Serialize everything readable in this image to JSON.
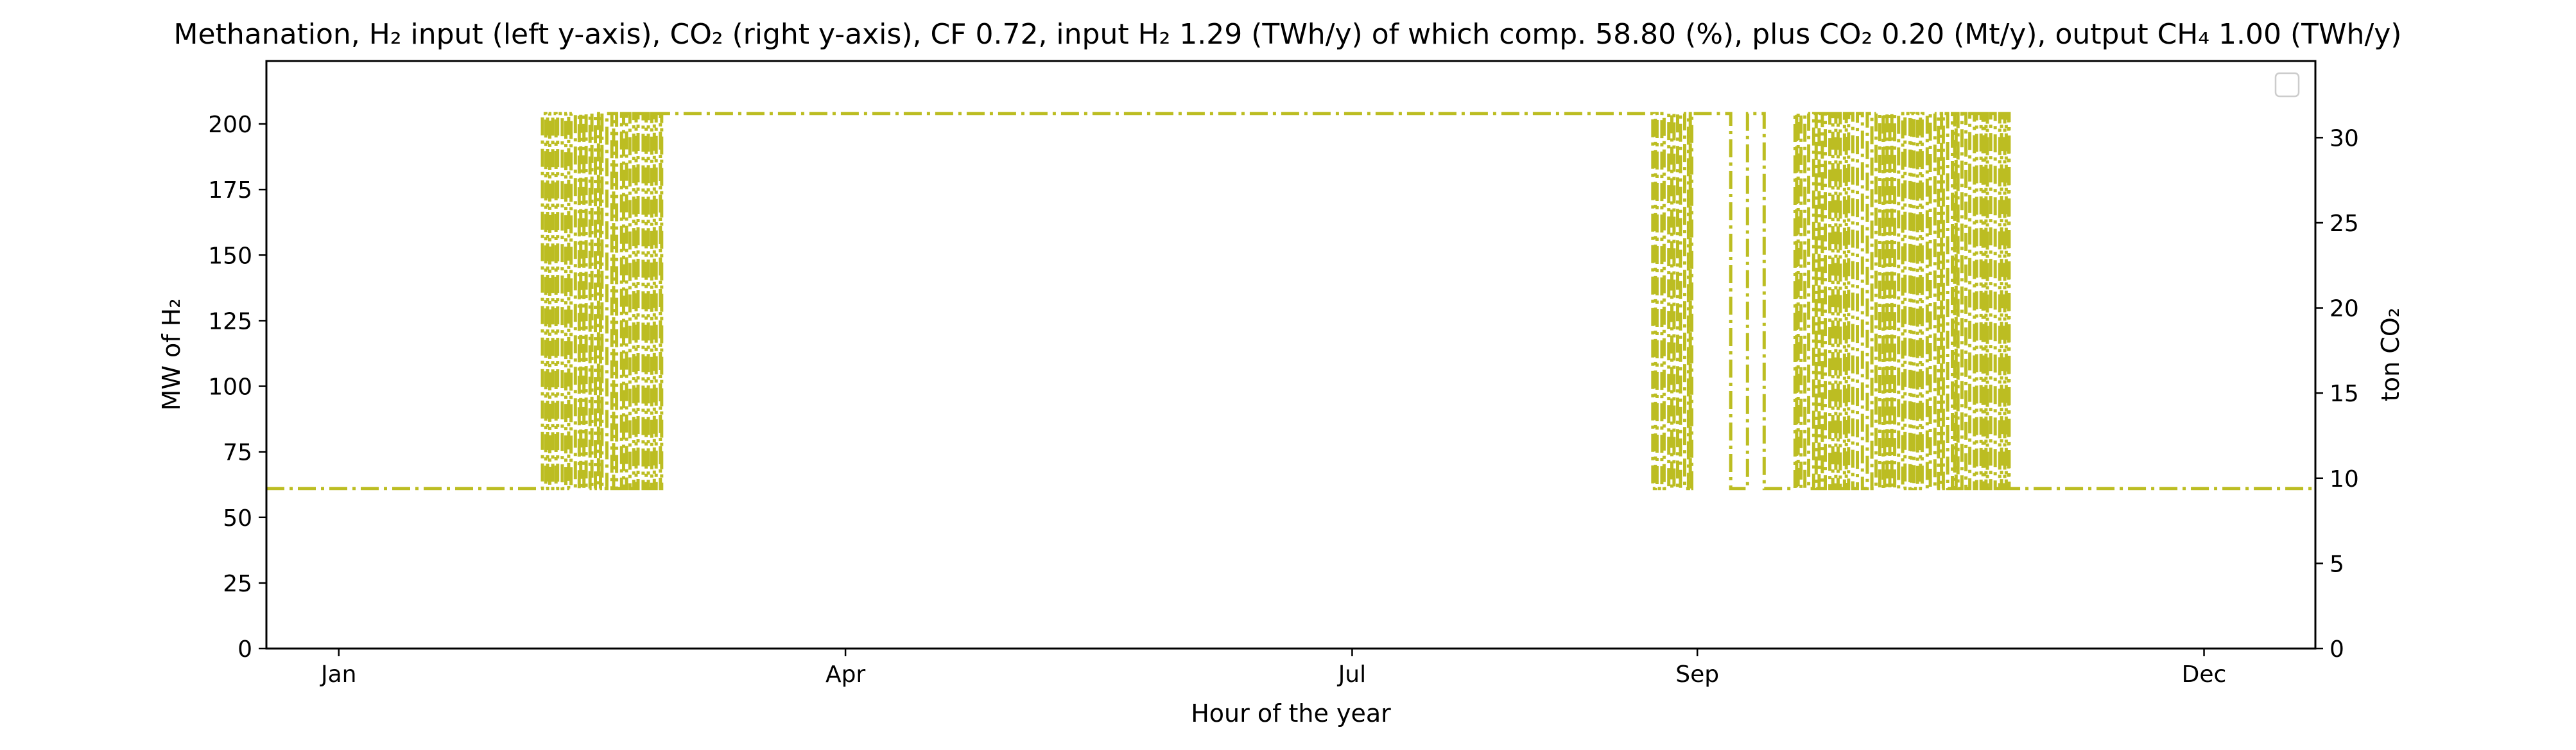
{
  "chart_data": {
    "type": "line",
    "title": "Methanation, H₂ input (left y-axis), CO₂ (right y-axis), CF 0.72, input H₂ 1.29 (TWh/y) of which comp. 58.80 (%), plus CO₂ 0.20 (Mt/y), output CH₄ 1.00 (TWh/y)",
    "xlabel": "Hour of the year",
    "ylabel_left": "MW of H₂",
    "ylabel_right": "ton CO₂",
    "x_axis_type": "date",
    "xlim": [
      "2023-12-19",
      "2024-12-21"
    ],
    "x_ticks": [
      {
        "date": "2024-01-01",
        "label": "Jan"
      },
      {
        "date": "2024-04-01",
        "label": "Apr"
      },
      {
        "date": "2024-07-01",
        "label": "Jul"
      },
      {
        "date": "2024-09-01",
        "label": "Sep"
      },
      {
        "date": "2024-12-01",
        "label": "Dec"
      }
    ],
    "ylim_left": [
      0,
      224
    ],
    "yticks_left": [
      "0",
      "25",
      "50",
      "75",
      "100",
      "125",
      "150",
      "175",
      "200"
    ],
    "ylim_right": [
      0,
      34.5
    ],
    "yticks_right": [
      "0",
      "5",
      "10",
      "15",
      "20",
      "25",
      "30"
    ],
    "grid": false,
    "legend": {
      "location": "upper right",
      "entries": []
    },
    "line_style": "dash-dot",
    "color": "#bcbd22",
    "series": [
      {
        "axis": "left",
        "unit": "MW",
        "min_value": 61,
        "max_value": 204,
        "segments": [
          {
            "start": "2023-12-19",
            "end": "2024-02-06",
            "pattern": "constant",
            "value": 61
          },
          {
            "start": "2024-02-06",
            "end": "2024-02-28",
            "pattern": "oscillating",
            "low": 61,
            "high": 204
          },
          {
            "start": "2024-02-28",
            "end": "2024-08-24",
            "pattern": "constant",
            "value": 204
          },
          {
            "start": "2024-08-24",
            "end": "2024-08-31",
            "pattern": "oscillating",
            "low": 61,
            "high": 204
          },
          {
            "start": "2024-08-31",
            "end": "2024-09-07",
            "pattern": "constant",
            "value": 204
          },
          {
            "start": "2024-09-07",
            "end": "2024-09-10",
            "pattern": "constant",
            "value": 61
          },
          {
            "start": "2024-09-10",
            "end": "2024-09-13",
            "pattern": "constant",
            "value": 204
          },
          {
            "start": "2024-09-13",
            "end": "2024-09-18",
            "pattern": "constant",
            "value": 61
          },
          {
            "start": "2024-09-18",
            "end": "2024-10-27",
            "pattern": "oscillating",
            "low": 61,
            "high": 204
          },
          {
            "start": "2024-10-27",
            "end": "2024-12-21",
            "pattern": "constant",
            "value": 61
          }
        ]
      }
    ]
  }
}
